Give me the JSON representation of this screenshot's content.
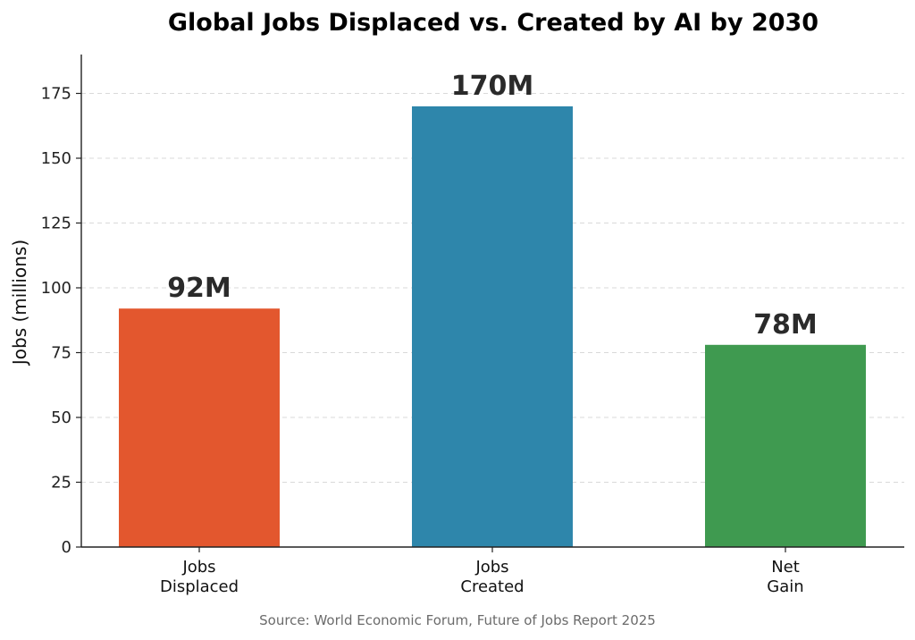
{
  "chart_data": {
    "type": "bar",
    "title": "Global Jobs Displaced vs. Created by AI by 2030",
    "ylabel": "Jobs (millions)",
    "xlabel": "",
    "categories": [
      [
        "Jobs",
        "Displaced"
      ],
      [
        "Jobs",
        "Created"
      ],
      [
        "Net",
        "Gain"
      ]
    ],
    "values": [
      92,
      170,
      78
    ],
    "data_labels": [
      "92M",
      "170M",
      "78M"
    ],
    "colors": [
      "#e3572e",
      "#2e86ab",
      "#3f9a50"
    ],
    "ylim": [
      0,
      190
    ],
    "yticks": [
      0,
      25,
      50,
      75,
      100,
      125,
      150,
      175
    ],
    "grid": "y-dashed",
    "source": "Source: World Economic Forum, Future of Jobs Report 2025"
  }
}
